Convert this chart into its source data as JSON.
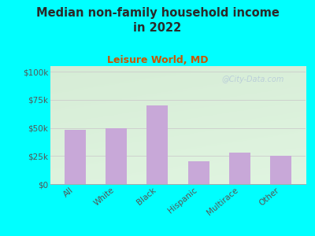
{
  "title": "Median non-family household income\nin 2022",
  "subtitle": "Leisure World, MD",
  "categories": [
    "All",
    "White",
    "Black",
    "Hispanic",
    "Multirace",
    "Other"
  ],
  "values": [
    48000,
    50000,
    70000,
    20000,
    28000,
    25000
  ],
  "bar_color": "#c8a8d8",
  "background_color": "#00FFFF",
  "title_color": "#2a2a2a",
  "subtitle_color": "#cc5500",
  "tick_color": "#555555",
  "yticks": [
    0,
    25000,
    50000,
    75000,
    100000
  ],
  "ytick_labels": [
    "$0",
    "$25k",
    "$50k",
    "$75k",
    "$100k"
  ],
  "watermark": "@City-Data.com",
  "watermark_color": "#b8ccd8",
  "ylim": [
    0,
    105000
  ],
  "grid_color": "#cccccc"
}
